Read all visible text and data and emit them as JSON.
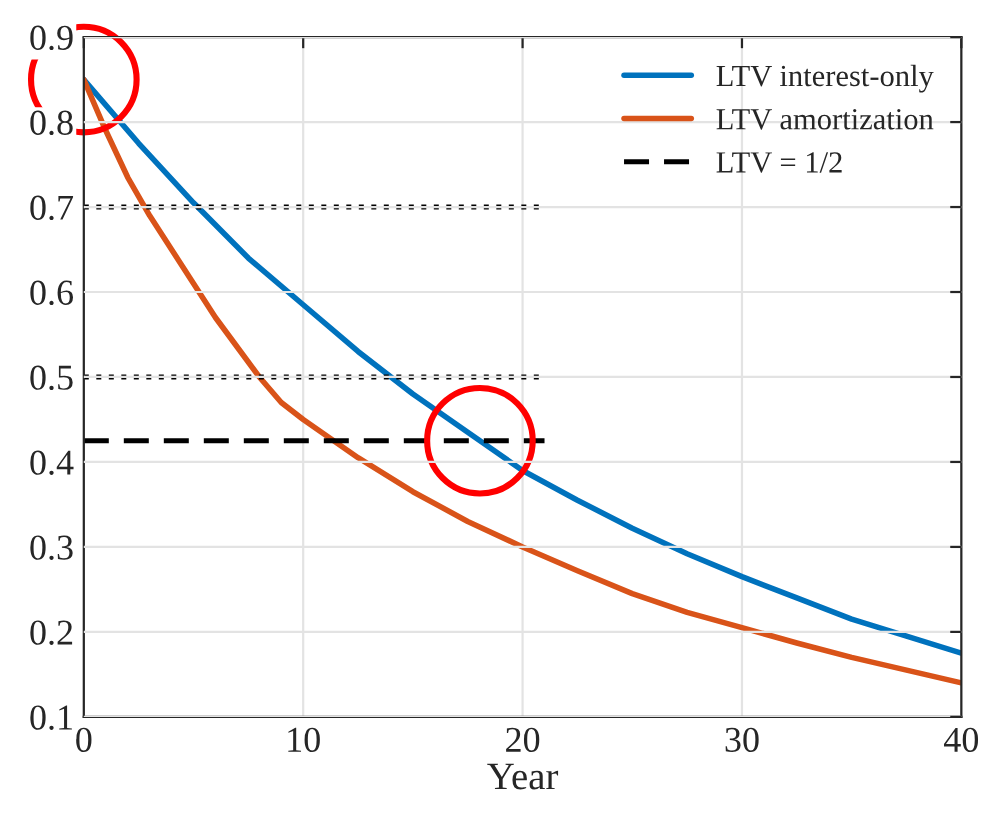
{
  "chart_data": {
    "type": "line",
    "xlabel": "Year",
    "xlim": [
      0,
      40
    ],
    "xticks": [
      0,
      10,
      20,
      30,
      40
    ],
    "ylim": [
      0.1,
      0.9
    ],
    "yticks": [
      0.1,
      0.2,
      0.3,
      0.4,
      0.5,
      0.6,
      0.7,
      0.8,
      0.9
    ],
    "grid": true,
    "legend": "top right",
    "line_style": "solid",
    "marker": "none",
    "series": [
      {
        "name": "LTV interest-only",
        "color": "#0072bd",
        "x": [
          0,
          2.5,
          5,
          7.5,
          10,
          12.5,
          15,
          17.5,
          20,
          22.5,
          25,
          27.5,
          30,
          32.5,
          35,
          37.5,
          40
        ],
        "values": [
          0.85,
          0.775,
          0.705,
          0.64,
          0.585,
          0.53,
          0.48,
          0.435,
          0.39,
          0.355,
          0.322,
          0.292,
          0.265,
          0.24,
          0.215,
          0.195,
          0.175
        ]
      },
      {
        "name": "LTV amortization",
        "color": "#d95319",
        "x": [
          0,
          1,
          2,
          3,
          4,
          5,
          6,
          7,
          8,
          9,
          10,
          12.5,
          15,
          17.5,
          20,
          22.5,
          25,
          27.5,
          30,
          32.5,
          35,
          37.5,
          40
        ],
        "values": [
          0.85,
          0.79,
          0.735,
          0.69,
          0.65,
          0.61,
          0.57,
          0.535,
          0.5,
          0.47,
          0.45,
          0.405,
          0.365,
          0.33,
          0.3,
          0.272,
          0.245,
          0.223,
          0.205,
          0.187,
          0.17,
          0.155,
          0.14
        ]
      },
      {
        "name": "LTV = 1/2",
        "color": "#000000",
        "line_style": "dashed",
        "x": [
          0,
          21
        ],
        "values": [
          0.425,
          0.425
        ]
      },
      {
        "color": "#000000",
        "line_style": "dotted",
        "x": [
          0,
          21
        ],
        "values": [
          0.7,
          0.7
        ]
      },
      {
        "color": "#000000",
        "line_style": "dotted",
        "x": [
          0,
          21
        ],
        "values": [
          0.5,
          0.5
        ]
      }
    ]
  }
}
